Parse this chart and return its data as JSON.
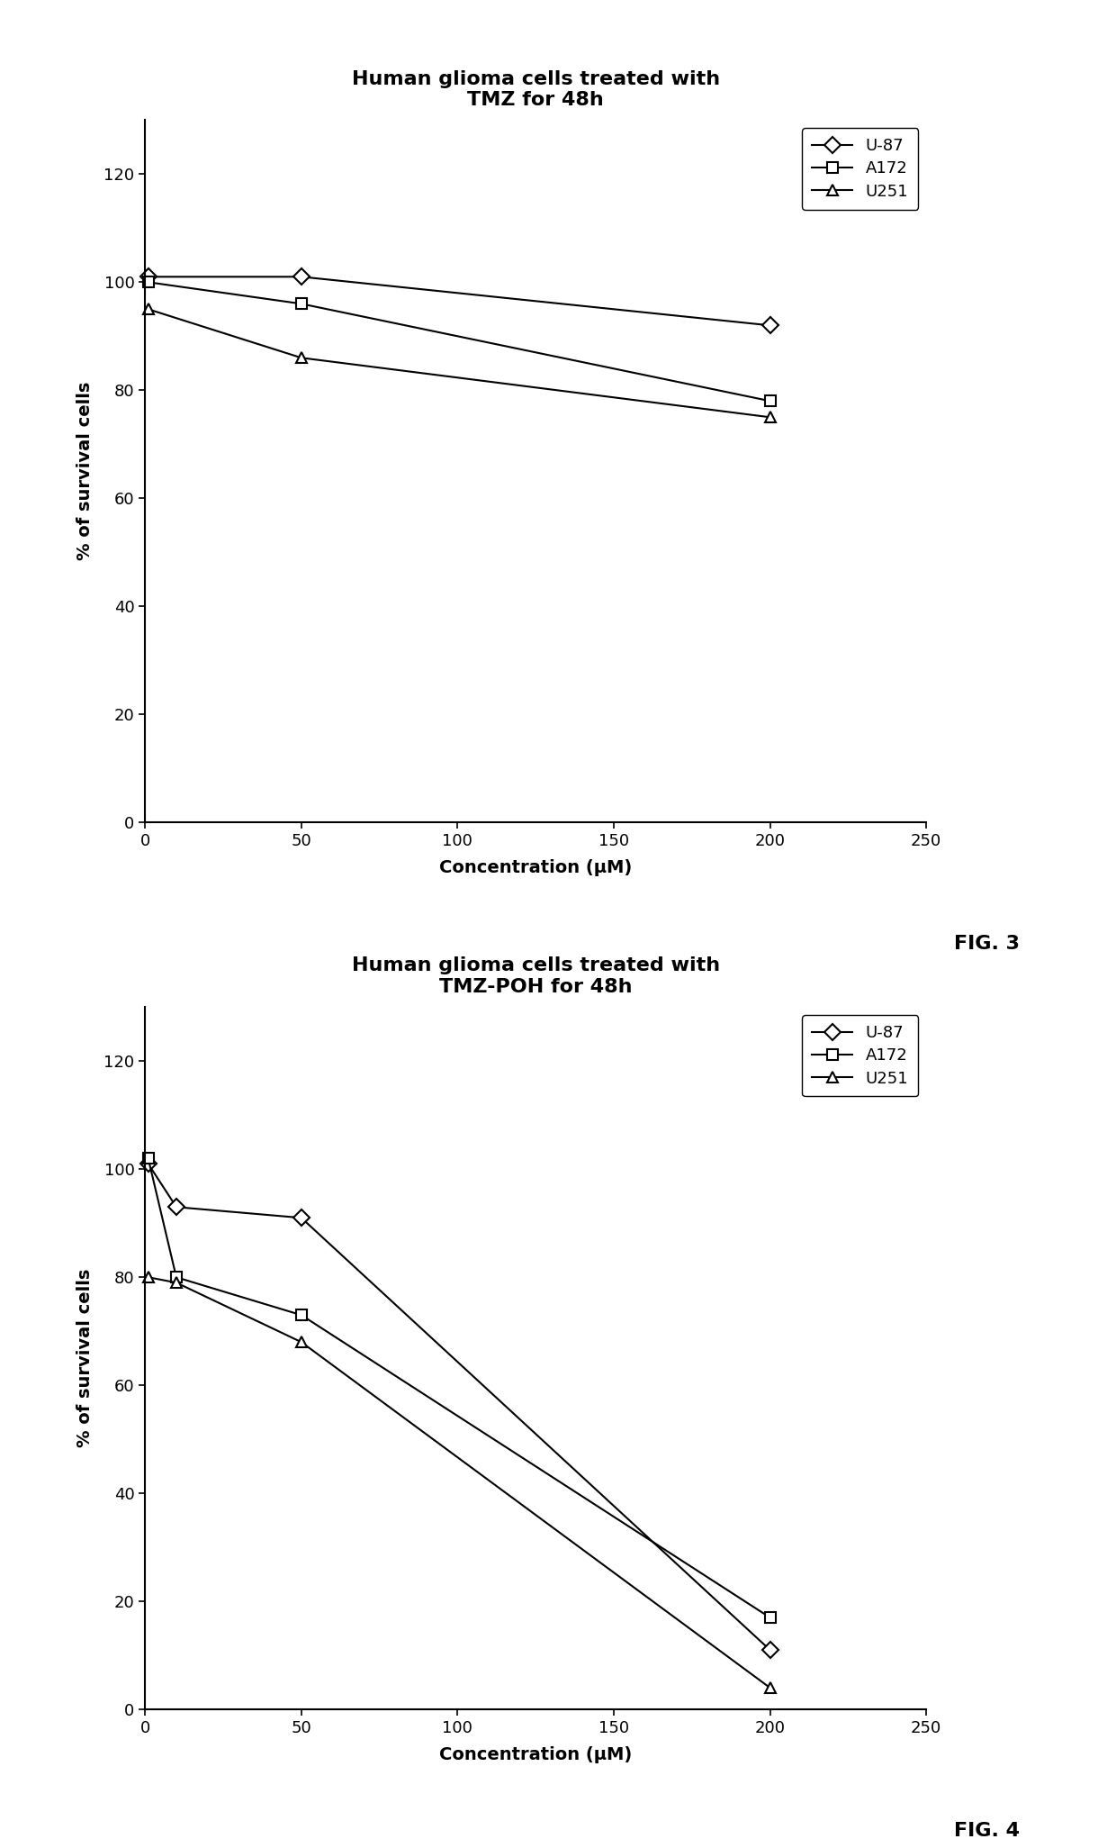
{
  "fig3": {
    "title": "Human glioma cells treated with\nTMZ for 48h",
    "xlabel": "Concentration (μM)",
    "ylabel": "% of survival cells",
    "xlim": [
      0,
      250
    ],
    "ylim": [
      0,
      130
    ],
    "yticks": [
      0,
      20,
      40,
      60,
      80,
      100,
      120
    ],
    "xticks": [
      0,
      50,
      100,
      150,
      200,
      250
    ],
    "series": [
      {
        "label": "U-87",
        "x": [
          1,
          50,
          200
        ],
        "y": [
          101,
          101,
          92
        ],
        "marker": "D",
        "color": "#000000",
        "linestyle": "-"
      },
      {
        "label": "A172",
        "x": [
          1,
          50,
          200
        ],
        "y": [
          100,
          96,
          78
        ],
        "marker": "s",
        "color": "#000000",
        "linestyle": "-"
      },
      {
        "label": "U251",
        "x": [
          1,
          50,
          200
        ],
        "y": [
          95,
          86,
          75
        ],
        "marker": "^",
        "color": "#000000",
        "linestyle": "-"
      }
    ],
    "fig_label": "FIG. 3"
  },
  "fig4": {
    "title": "Human glioma cells treated with\nTMZ-POH for 48h",
    "xlabel": "Concentration (μM)",
    "ylabel": "% of survival cells",
    "xlim": [
      0,
      250
    ],
    "ylim": [
      0,
      130
    ],
    "yticks": [
      0,
      20,
      40,
      60,
      80,
      100,
      120
    ],
    "xticks": [
      0,
      50,
      100,
      150,
      200,
      250
    ],
    "series": [
      {
        "label": "U-87",
        "x": [
          1,
          10,
          50,
          200
        ],
        "y": [
          101,
          93,
          91,
          11
        ],
        "marker": "D",
        "color": "#000000",
        "linestyle": "-"
      },
      {
        "label": "A172",
        "x": [
          1,
          10,
          50,
          200
        ],
        "y": [
          102,
          80,
          73,
          17
        ],
        "marker": "s",
        "color": "#000000",
        "linestyle": "-"
      },
      {
        "label": "U251",
        "x": [
          1,
          10,
          50,
          200
        ],
        "y": [
          80,
          79,
          68,
          4
        ],
        "marker": "^",
        "color": "#000000",
        "linestyle": "-"
      }
    ],
    "fig_label": "FIG. 4"
  },
  "background_color": "#ffffff",
  "title_fontsize": 16,
  "label_fontsize": 14,
  "tick_fontsize": 13,
  "legend_fontsize": 13,
  "marker_size": 9,
  "line_width": 1.5
}
